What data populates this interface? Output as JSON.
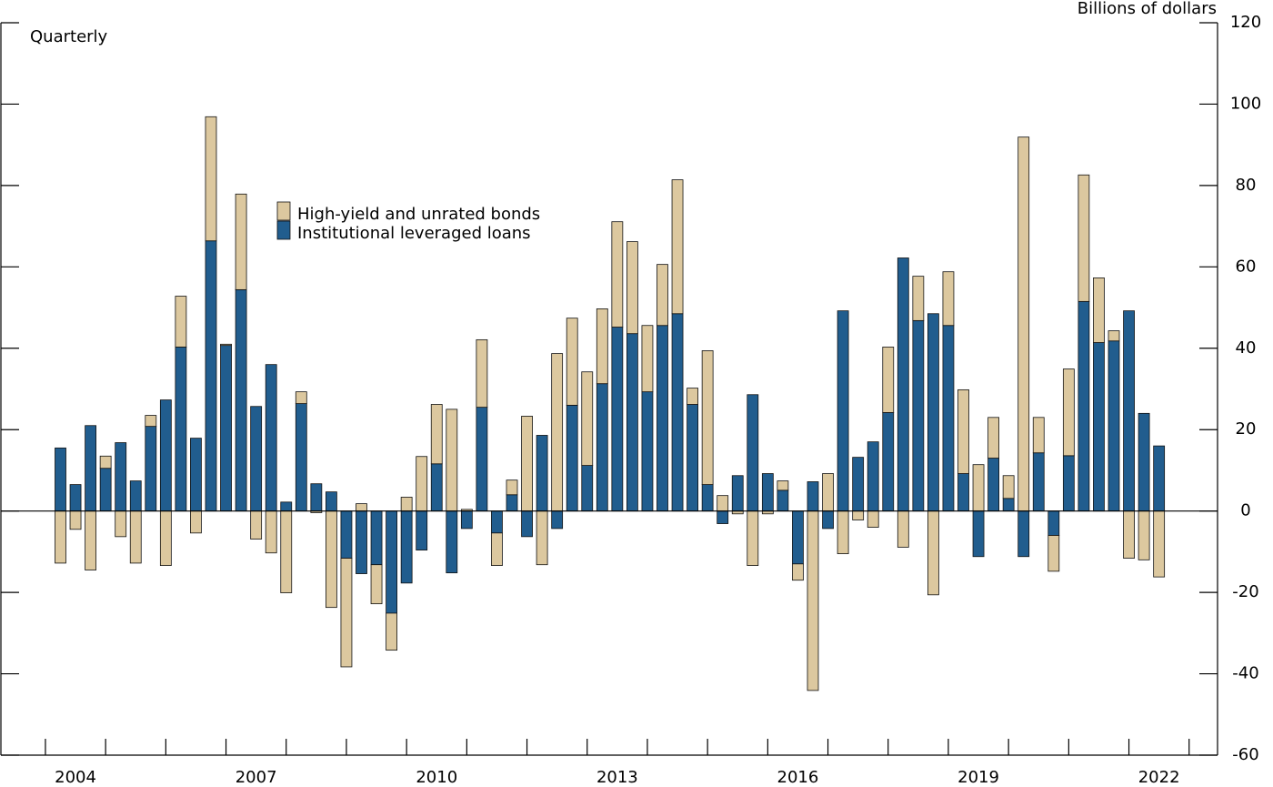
{
  "chart_data": {
    "type": "stacked_bar",
    "subtitle": "Quarterly",
    "y_label": "Billions of dollars",
    "categories": [
      "2004",
      null,
      null,
      null,
      null,
      null,
      null,
      null,
      null,
      null,
      null,
      null,
      "2007",
      null,
      null,
      null,
      null,
      null,
      null,
      null,
      null,
      null,
      null,
      null,
      "2010",
      null,
      null,
      null,
      null,
      null,
      null,
      null,
      null,
      null,
      null,
      null,
      "2013",
      null,
      null,
      null,
      null,
      null,
      null,
      null,
      null,
      null,
      null,
      null,
      "2016",
      null,
      null,
      null,
      null,
      null,
      null,
      null,
      null,
      null,
      null,
      null,
      "2019",
      null,
      null,
      null,
      null,
      null,
      null,
      null,
      null,
      null,
      null,
      null,
      "2022",
      null
    ],
    "series": [
      {
        "name": "High-yield and unrated bonds",
        "color": "#dcc89f",
        "values": [
          -12.8,
          -4.5,
          -14.5,
          3,
          -6.3,
          -12.8,
          2.7,
          -13.4,
          12.5,
          -5.4,
          30.5,
          0.3,
          23.5,
          -6.9,
          -10.3,
          -20.1,
          2.9,
          -0.4,
          -23.7,
          -26.7,
          1.8,
          -9.6,
          -9.1,
          3.4,
          13.4,
          14.6,
          25,
          0.4,
          16.6,
          -8,
          3.6,
          23.3,
          -13.2,
          38.7,
          21.4,
          23,
          18.4,
          25.9,
          22.6,
          16.3,
          15,
          32.9,
          4,
          32.9,
          3.8,
          -0.7,
          -13.4,
          -0.7,
          2.3,
          -4,
          -44.1,
          9.2,
          -10.5,
          -2.2,
          -4,
          16.1,
          -8.9,
          10.9,
          -20.6,
          13.2,
          20.6,
          11.4,
          10,
          5.6,
          91.9,
          8.7,
          -8.8,
          21.3,
          31.1,
          15.9,
          2.5,
          -11.6,
          -12,
          -16.2
        ]
      },
      {
        "name": "Institutional leveraged loans",
        "color": "#215d8e",
        "values": [
          15.5,
          6.5,
          21,
          10.5,
          16.8,
          7.4,
          20.8,
          27.3,
          40.3,
          17.9,
          66.4,
          40.7,
          54.4,
          25.7,
          36,
          2.2,
          26.4,
          6.7,
          4.7,
          -11.6,
          -15.4,
          -13.2,
          -25.1,
          -17.7,
          -9.6,
          11.6,
          -15.2,
          -4.3,
          25.5,
          -5.4,
          4,
          -6.3,
          18.6,
          -4.3,
          26,
          11.2,
          31.3,
          45.2,
          43.6,
          29.3,
          45.6,
          48.5,
          26.2,
          6.5,
          -3.1,
          8.7,
          28.6,
          9.2,
          5.1,
          -13,
          7.2,
          -4.3,
          49.2,
          13.2,
          17,
          24.2,
          62.2,
          46.8,
          48.5,
          45.6,
          9.2,
          -11.2,
          13,
          3.1,
          -11.2,
          14.3,
          -6,
          13.6,
          51.5,
          41.4,
          41.8,
          49.2,
          24,
          16
        ]
      }
    ],
    "ylim": [
      -60,
      120
    ],
    "yticks": [
      -60,
      -40,
      -20,
      0,
      20,
      40,
      60,
      80,
      100,
      120
    ],
    "grid": false
  }
}
